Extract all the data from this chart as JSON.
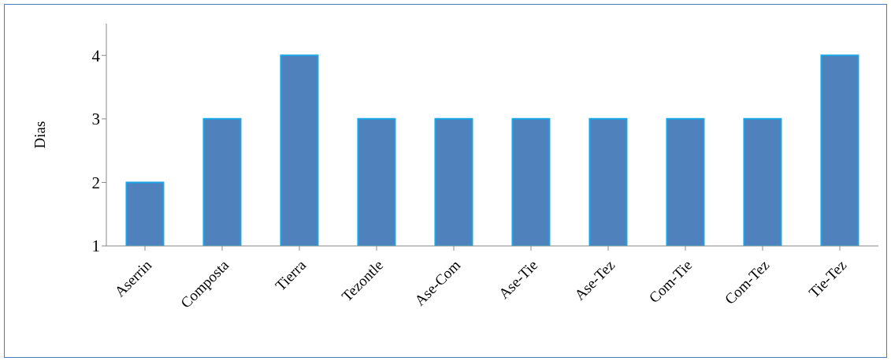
{
  "chart_data": {
    "type": "bar",
    "ylabel": "Dias",
    "categories": [
      "Aserrin",
      "Composta",
      "Tierra",
      "Tezontle",
      "Ase-Com",
      "Ase-Tie",
      "Ase-Tez",
      "Com-Tie",
      "Com-Tez",
      "Tie-Tez"
    ],
    "values": [
      2,
      3,
      4,
      3,
      3,
      3,
      3,
      3,
      3,
      4
    ],
    "color": "#4f81bd",
    "ylim": [
      1,
      4.5
    ],
    "yticks": [
      1,
      2,
      3,
      4
    ],
    "grid": false
  }
}
